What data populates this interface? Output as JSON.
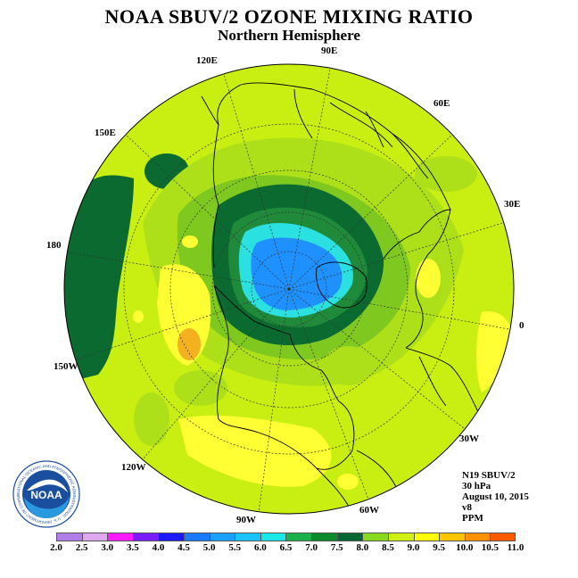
{
  "title": "NOAA SBUV/2 OZONE MIXING RATIO",
  "subtitle": "Northern Hemisphere",
  "longitude_labels": {
    "e120": "120E",
    "e90": "90E",
    "e60": "60E",
    "e150": "150E",
    "e30": "30E",
    "lon180": "180",
    "lon0": "0",
    "w150": "150W",
    "w30": "30W",
    "w120": "120W",
    "w60": "60W",
    "w90": "90W"
  },
  "info": {
    "instrument": "N19 SBUV/2",
    "level": "30 hPa",
    "date": "August 10, 2015",
    "version": "v8",
    "units": "PPM"
  },
  "logo": {
    "text": "NOAA",
    "ring_text": "NATIONAL OCEANIC AND ATMOSPHERIC ADMINISTRATION · U.S. DEPARTMENT OF COMMERCE"
  },
  "colorbar": {
    "ticks": [
      "2.0",
      "2.5",
      "3.0",
      "3.5",
      "4.0",
      "4.5",
      "5.0",
      "5.5",
      "6.0",
      "6.5",
      "7.0",
      "7.5",
      "8.0",
      "8.5",
      "9.0",
      "9.5",
      "10.0",
      "10.5",
      "11.0"
    ],
    "colors": [
      "#b07ee8",
      "#dda8f0",
      "#ff1aff",
      "#7a1aff",
      "#1a1aff",
      "#1a7aff",
      "#1aa0ff",
      "#1ac4ff",
      "#1ae8e8",
      "#1ab04a",
      "#0a8a2a",
      "#006633",
      "#88d820",
      "#d0f014",
      "#ffff00",
      "#ffc400",
      "#ff9000",
      "#ff5a00",
      "#ff1a1a",
      "#e80000",
      "#8b5a2b"
    ]
  },
  "palette": {
    "lime": "#c8ee12",
    "yellowgreen": "#aee01a",
    "green": "#7ec820",
    "darkgreen": "#1f8a3a",
    "deepgreen": "#0a6a30",
    "cyan": "#2ae0e0",
    "blue": "#1e90ff",
    "yellow": "#ffff33",
    "orange": "#f5b020"
  }
}
